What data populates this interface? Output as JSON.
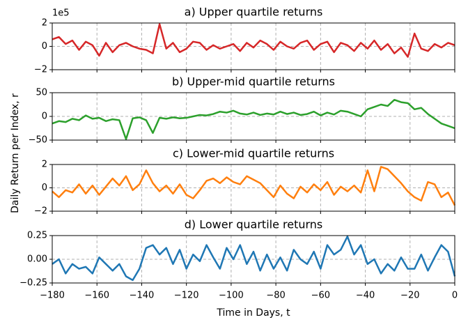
{
  "xlabel": "Time in Days, t",
  "ylabel": "Daily Return per Index, r",
  "xlim": [
    -180,
    0
  ],
  "xticks": [
    {
      "value": -180,
      "label": "−180"
    },
    {
      "value": -160,
      "label": "−160"
    },
    {
      "value": -140,
      "label": "−140"
    },
    {
      "value": -120,
      "label": "−120"
    },
    {
      "value": -100,
      "label": "−100"
    },
    {
      "value": -80,
      "label": "−80"
    },
    {
      "value": -60,
      "label": "−60"
    },
    {
      "value": -40,
      "label": "−40"
    },
    {
      "value": -20,
      "label": "−20"
    },
    0
  ],
  "x": [
    -180,
    -177,
    -174,
    -171,
    -168,
    -165,
    -162,
    -159,
    -156,
    -153,
    -150,
    -147,
    -144,
    -141,
    -138,
    -135,
    -132,
    -129,
    -126,
    -123,
    -120,
    -117,
    -114,
    -111,
    -108,
    -105,
    -102,
    -99,
    -96,
    -93,
    -90,
    -87,
    -84,
    -81,
    -78,
    -75,
    -72,
    -69,
    -66,
    -63,
    -60,
    -57,
    -54,
    -51,
    -48,
    -45,
    -42,
    -39,
    -36,
    -33,
    -30,
    -27,
    -24,
    -21,
    -18,
    -15,
    -12,
    -9,
    -6,
    -3,
    0
  ],
  "grid": true,
  "chart_data": [
    {
      "type": "line",
      "title": "a) Upper quartile returns",
      "offset_label": "1e5",
      "color": "#d62728",
      "ylim": [
        -2,
        2
      ],
      "yticks": [
        {
          "value": -2,
          "label": "−2"
        },
        0,
        2
      ],
      "values": [
        0.6,
        0.8,
        0.2,
        0.5,
        -0.3,
        0.4,
        0.1,
        -0.8,
        0.3,
        -0.5,
        0.1,
        0.3,
        0.0,
        -0.2,
        -0.3,
        -0.6,
        1.9,
        -0.2,
        0.3,
        -0.5,
        -0.2,
        0.4,
        0.3,
        -0.3,
        0.1,
        -0.2,
        0.0,
        0.2,
        -0.4,
        0.3,
        -0.1,
        0.5,
        0.2,
        -0.3,
        0.4,
        0.0,
        -0.2,
        0.3,
        0.5,
        -0.3,
        0.2,
        0.4,
        -0.5,
        0.3,
        0.1,
        -0.4,
        0.3,
        -0.2,
        0.5,
        -0.3,
        0.2,
        -0.6,
        -0.1,
        -0.9,
        1.1,
        -0.2,
        -0.4,
        0.2,
        -0.1,
        0.3,
        0.1
      ]
    },
    {
      "type": "line",
      "title": "b) Upper-mid quartile returns",
      "color": "#2ca02c",
      "ylim": [
        -50,
        50
      ],
      "yticks": [
        {
          "value": -50,
          "label": "−50"
        },
        0,
        50
      ],
      "values": [
        -15,
        -10,
        -12,
        -5,
        -8,
        2,
        -5,
        -3,
        -10,
        -6,
        -8,
        -48,
        -4,
        -2,
        -8,
        -35,
        -3,
        -5,
        -2,
        -4,
        -3,
        0,
        3,
        2,
        5,
        10,
        8,
        12,
        6,
        4,
        8,
        3,
        6,
        4,
        10,
        5,
        8,
        3,
        5,
        10,
        2,
        8,
        4,
        12,
        10,
        5,
        0,
        15,
        20,
        25,
        22,
        35,
        30,
        28,
        15,
        18,
        5,
        -5,
        -15,
        -20,
        -25
      ]
    },
    {
      "type": "line",
      "title": "c) Lower-mid quartile returns",
      "color": "#ff7f0e",
      "ylim": [
        -2,
        2
      ],
      "yticks": [
        {
          "value": -2,
          "label": "−2"
        },
        0,
        2
      ],
      "values": [
        -0.3,
        -0.8,
        -0.2,
        -0.4,
        0.3,
        -0.5,
        0.2,
        -0.6,
        0.1,
        0.8,
        0.2,
        1.0,
        -0.2,
        0.3,
        1.5,
        0.4,
        -0.3,
        0.2,
        -0.5,
        0.3,
        -0.6,
        -0.9,
        -0.2,
        0.6,
        0.8,
        0.4,
        0.9,
        0.5,
        0.3,
        1.0,
        0.7,
        0.4,
        -0.2,
        -0.8,
        0.2,
        -0.5,
        -0.9,
        0.1,
        -0.4,
        0.3,
        -0.2,
        0.5,
        -0.6,
        0.1,
        -0.3,
        0.2,
        -0.4,
        1.5,
        -0.3,
        1.8,
        1.6,
        1.0,
        0.4,
        -0.3,
        -0.8,
        -1.1,
        0.5,
        0.3,
        -0.8,
        -0.4,
        -1.5
      ]
    },
    {
      "type": "line",
      "title": "d) Lower quartile returns",
      "color": "#1f77b4",
      "ylim": [
        -0.25,
        0.25
      ],
      "yticks": [
        {
          "value": -0.25,
          "label": "−0.25"
        },
        {
          "value": 0,
          "label": "0.00"
        },
        0.25
      ],
      "values": [
        -0.05,
        0.0,
        -0.15,
        -0.05,
        -0.1,
        -0.08,
        -0.15,
        0.02,
        -0.05,
        -0.12,
        -0.05,
        -0.18,
        -0.22,
        -0.1,
        0.12,
        0.15,
        0.05,
        0.12,
        -0.05,
        0.1,
        -0.1,
        0.05,
        -0.02,
        0.15,
        0.02,
        -0.1,
        0.12,
        0.0,
        0.15,
        -0.05,
        0.08,
        -0.12,
        0.05,
        -0.1,
        0.02,
        -0.12,
        0.1,
        0.0,
        -0.05,
        0.08,
        -0.1,
        0.15,
        0.05,
        0.1,
        0.24,
        0.05,
        0.15,
        -0.05,
        0.0,
        -0.15,
        -0.05,
        -0.12,
        0.02,
        -0.1,
        -0.1,
        0.05,
        -0.12,
        0.02,
        0.15,
        0.08,
        -0.18
      ]
    }
  ]
}
